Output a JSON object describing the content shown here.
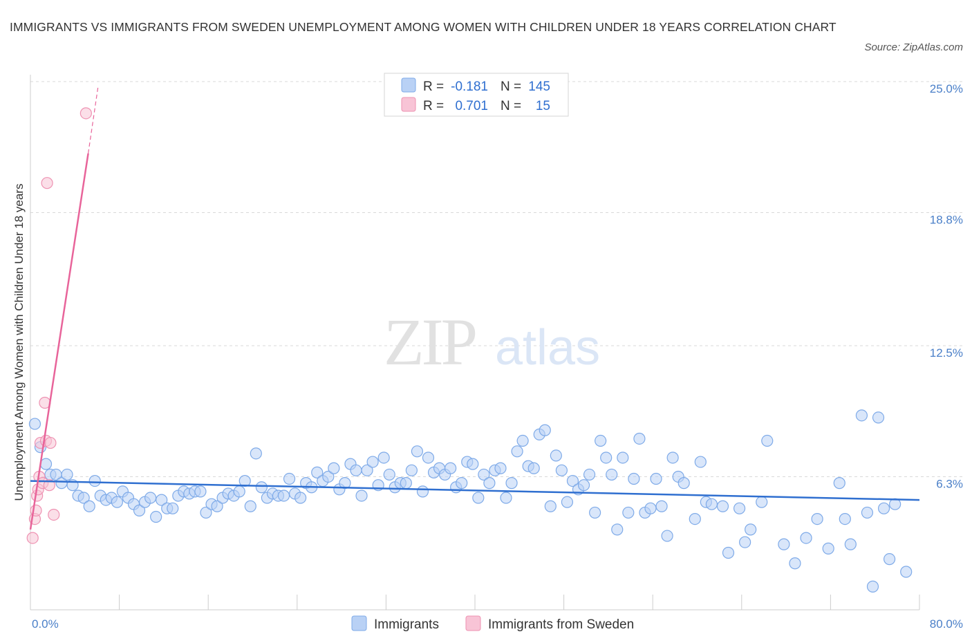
{
  "title": "IMMIGRANTS VS IMMIGRANTS FROM SWEDEN UNEMPLOYMENT AMONG WOMEN WITH CHILDREN UNDER 18 YEARS CORRELATION CHART",
  "source": "Source: ZipAtlas.com",
  "watermark": {
    "zip": "ZIP",
    "atlas": "atlas"
  },
  "colors": {
    "immigrants_fill": "#b9d1f5",
    "immigrants_stroke": "#7eaae8",
    "immigrants_line": "#2f6fd0",
    "sweden_fill": "#f8c4d6",
    "sweden_stroke": "#ee92b2",
    "sweden_line": "#e8649a",
    "axis_label": "#4a7fc8",
    "grid": "#d8d8d8"
  },
  "legend_top": {
    "rows": [
      {
        "r_label": "R =",
        "r_value": "-0.181",
        "n_label": "N =",
        "n_value": "145"
      },
      {
        "r_label": "R =",
        "r_value": "0.701",
        "n_label": "N =",
        "n_value": "15"
      }
    ]
  },
  "chart_data": {
    "type": "scatter",
    "ylabel": "Unemployment Among Women with Children Under 18 years",
    "xlabel": "",
    "x_axis": {
      "min": 0.0,
      "max": 80.0,
      "tick_labels": [
        "0.0%",
        "80.0%"
      ]
    },
    "y_axis": {
      "min": 0.0,
      "max": 25.0,
      "gridlines": [
        6.3,
        12.5,
        18.8,
        25.0
      ],
      "tick_labels": [
        "6.3%",
        "12.5%",
        "18.8%",
        "25.0%"
      ]
    },
    "legend_placement": "top-center",
    "series": [
      {
        "name": "Immigrants",
        "R": -0.181,
        "N": 145,
        "trend": {
          "x": [
            0,
            80
          ],
          "y": [
            6.1,
            5.2
          ]
        },
        "points": [
          [
            0.4,
            8.8
          ],
          [
            0.9,
            7.7
          ],
          [
            1.4,
            6.9
          ],
          [
            1.8,
            6.4
          ],
          [
            2.3,
            6.4
          ],
          [
            2.8,
            6.0
          ],
          [
            3.3,
            6.4
          ],
          [
            3.8,
            5.9
          ],
          [
            4.3,
            5.4
          ],
          [
            4.8,
            5.3
          ],
          [
            5.3,
            4.9
          ],
          [
            5.8,
            6.1
          ],
          [
            6.3,
            5.4
          ],
          [
            6.8,
            5.2
          ],
          [
            7.3,
            5.3
          ],
          [
            7.8,
            5.1
          ],
          [
            8.3,
            5.6
          ],
          [
            8.8,
            5.3
          ],
          [
            9.3,
            5.0
          ],
          [
            9.8,
            4.7
          ],
          [
            10.3,
            5.1
          ],
          [
            10.8,
            5.3
          ],
          [
            11.3,
            4.4
          ],
          [
            11.8,
            5.2
          ],
          [
            12.3,
            4.8
          ],
          [
            12.8,
            4.8
          ],
          [
            13.3,
            5.4
          ],
          [
            13.8,
            5.6
          ],
          [
            14.3,
            5.5
          ],
          [
            14.8,
            5.6
          ],
          [
            15.3,
            5.6
          ],
          [
            15.8,
            4.6
          ],
          [
            16.3,
            5.0
          ],
          [
            16.8,
            4.9
          ],
          [
            17.3,
            5.3
          ],
          [
            17.8,
            5.5
          ],
          [
            18.3,
            5.4
          ],
          [
            18.8,
            5.6
          ],
          [
            19.3,
            6.1
          ],
          [
            19.8,
            4.9
          ],
          [
            20.3,
            7.4
          ],
          [
            20.8,
            5.8
          ],
          [
            21.3,
            5.3
          ],
          [
            21.8,
            5.5
          ],
          [
            22.3,
            5.4
          ],
          [
            22.8,
            5.4
          ],
          [
            23.3,
            6.2
          ],
          [
            23.8,
            5.5
          ],
          [
            24.3,
            5.3
          ],
          [
            24.8,
            6.0
          ],
          [
            25.3,
            5.8
          ],
          [
            25.8,
            6.5
          ],
          [
            26.3,
            6.1
          ],
          [
            26.8,
            6.3
          ],
          [
            27.3,
            6.7
          ],
          [
            27.8,
            5.7
          ],
          [
            28.3,
            6.0
          ],
          [
            28.8,
            6.9
          ],
          [
            29.3,
            6.6
          ],
          [
            29.8,
            5.4
          ],
          [
            30.3,
            6.6
          ],
          [
            30.8,
            7.0
          ],
          [
            31.3,
            5.9
          ],
          [
            31.8,
            7.2
          ],
          [
            32.3,
            6.4
          ],
          [
            32.8,
            5.8
          ],
          [
            33.3,
            6.0
          ],
          [
            33.8,
            6.0
          ],
          [
            34.3,
            6.6
          ],
          [
            34.8,
            7.5
          ],
          [
            35.3,
            5.6
          ],
          [
            35.8,
            7.2
          ],
          [
            36.3,
            6.5
          ],
          [
            36.8,
            6.7
          ],
          [
            37.3,
            6.4
          ],
          [
            37.8,
            6.7
          ],
          [
            38.3,
            5.8
          ],
          [
            38.8,
            6.0
          ],
          [
            39.3,
            7.0
          ],
          [
            39.8,
            6.9
          ],
          [
            40.3,
            5.3
          ],
          [
            40.8,
            6.4
          ],
          [
            41.3,
            6.0
          ],
          [
            41.8,
            6.6
          ],
          [
            42.3,
            6.7
          ],
          [
            42.8,
            5.3
          ],
          [
            43.3,
            6.0
          ],
          [
            43.8,
            7.5
          ],
          [
            44.3,
            8.0
          ],
          [
            44.8,
            6.8
          ],
          [
            45.3,
            6.7
          ],
          [
            45.8,
            8.3
          ],
          [
            46.3,
            8.5
          ],
          [
            46.8,
            4.9
          ],
          [
            47.3,
            7.3
          ],
          [
            47.8,
            6.6
          ],
          [
            48.3,
            5.1
          ],
          [
            48.8,
            6.1
          ],
          [
            49.3,
            5.7
          ],
          [
            49.8,
            5.9
          ],
          [
            50.3,
            6.4
          ],
          [
            50.8,
            4.6
          ],
          [
            51.3,
            8.0
          ],
          [
            51.8,
            7.2
          ],
          [
            52.3,
            6.4
          ],
          [
            52.8,
            3.8
          ],
          [
            53.3,
            7.2
          ],
          [
            53.8,
            4.6
          ],
          [
            54.3,
            6.2
          ],
          [
            54.8,
            8.1
          ],
          [
            55.3,
            4.6
          ],
          [
            55.8,
            4.8
          ],
          [
            56.3,
            6.2
          ],
          [
            56.8,
            4.9
          ],
          [
            57.3,
            3.5
          ],
          [
            57.8,
            7.2
          ],
          [
            58.3,
            6.3
          ],
          [
            58.8,
            6.0
          ],
          [
            59.8,
            4.3
          ],
          [
            60.3,
            7.0
          ],
          [
            60.8,
            5.1
          ],
          [
            61.3,
            5.0
          ],
          [
            62.3,
            4.9
          ],
          [
            62.8,
            2.7
          ],
          [
            63.8,
            4.8
          ],
          [
            64.3,
            3.2
          ],
          [
            64.8,
            3.8
          ],
          [
            65.8,
            5.1
          ],
          [
            66.3,
            8.0
          ],
          [
            67.8,
            3.1
          ],
          [
            68.8,
            2.2
          ],
          [
            69.8,
            3.4
          ],
          [
            70.8,
            4.3
          ],
          [
            71.8,
            2.9
          ],
          [
            72.8,
            6.0
          ],
          [
            73.3,
            4.3
          ],
          [
            73.8,
            3.1
          ],
          [
            74.8,
            9.2
          ],
          [
            75.3,
            4.6
          ],
          [
            75.8,
            1.1
          ],
          [
            76.3,
            9.1
          ],
          [
            76.8,
            4.8
          ],
          [
            77.3,
            2.4
          ],
          [
            77.8,
            5.0
          ],
          [
            78.8,
            1.8
          ]
        ]
      },
      {
        "name": "Immigrants from Sweden",
        "R": 0.701,
        "N": 15,
        "trend": {
          "x": [
            0,
            5.2
          ],
          "y": [
            3.8,
            21.6
          ],
          "dashed_to": {
            "x": 6.1,
            "y": 24.8
          }
        },
        "points": [
          [
            0.2,
            3.4
          ],
          [
            0.4,
            4.3
          ],
          [
            0.5,
            4.7
          ],
          [
            0.6,
            5.4
          ],
          [
            0.7,
            5.7
          ],
          [
            0.8,
            6.3
          ],
          [
            0.9,
            7.9
          ],
          [
            1.1,
            6.0
          ],
          [
            1.3,
            9.8
          ],
          [
            1.4,
            8.0
          ],
          [
            1.5,
            20.2
          ],
          [
            1.7,
            5.9
          ],
          [
            1.8,
            7.9
          ],
          [
            2.1,
            4.5
          ],
          [
            5.0,
            23.5
          ]
        ]
      }
    ]
  },
  "legend_bottom": [
    {
      "label": "Immigrants"
    },
    {
      "label": "Immigrants from Sweden"
    }
  ]
}
